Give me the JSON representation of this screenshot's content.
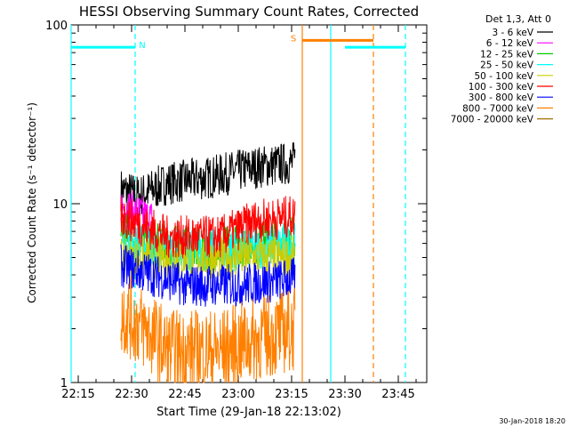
{
  "chart_data": {
    "type": "line",
    "title": "HESSI Observing Summary Count Rates, Corrected",
    "xlabel": "Start Time (29-Jan-18 22:13:02)",
    "ylabel": "Corrected Count Rate (s⁻¹ detector⁻¹)",
    "y_scale": "log",
    "ylim": [
      1,
      100
    ],
    "xlim": [
      "22:13",
      "23:53"
    ],
    "x_ticks": [
      "22:15",
      "22:30",
      "22:45",
      "23:00",
      "23:15",
      "23:30",
      "23:45"
    ],
    "y_ticks": [
      "1",
      "10",
      "100"
    ],
    "legend_title": "Det 1,3, Att 0",
    "legend_position": "right",
    "footer_date": "30-Jan-2018 18:20",
    "series": [
      {
        "name": "3 - 6 keV",
        "color": "#000000",
        "x": [
          "22:27",
          "22:32",
          "22:40",
          "22:52",
          "23:05",
          "23:16"
        ],
        "y": [
          12,
          11,
          13,
          14,
          16,
          17
        ]
      },
      {
        "name": "6 - 12 keV",
        "color": "#ff00ff",
        "x": [
          "22:27",
          "22:30",
          "22:36"
        ],
        "y": [
          10,
          9,
          8
        ]
      },
      {
        "name": "12 - 25 keV",
        "color": "#00cc00",
        "x": [
          "22:27",
          "22:35",
          "22:50",
          "23:05",
          "23:16"
        ],
        "y": [
          7,
          6,
          5.5,
          6,
          6.5
        ]
      },
      {
        "name": "25 - 50 keV",
        "color": "#00ffff",
        "x": [
          "22:27",
          "22:40",
          "23:00",
          "23:16"
        ],
        "y": [
          6,
          5.5,
          5.5,
          6
        ]
      },
      {
        "name": "50 - 100 keV",
        "color": "#cccc00",
        "x": [
          "22:27",
          "22:45",
          "23:16"
        ],
        "y": [
          5,
          5,
          5
        ]
      },
      {
        "name": "100 - 300 keV",
        "color": "#ff0000",
        "x": [
          "22:27",
          "22:40",
          "22:55",
          "23:05",
          "23:16"
        ],
        "y": [
          8.5,
          6.5,
          6.5,
          8,
          8.5
        ]
      },
      {
        "name": "300 - 800 keV",
        "color": "#0000ff",
        "x": [
          "22:27",
          "22:45",
          "23:00",
          "23:16"
        ],
        "y": [
          4.5,
          3.5,
          3.5,
          3.8
        ]
      },
      {
        "name": "800 - 7000 keV",
        "color": "#ff8000",
        "x": [
          "22:27",
          "22:40",
          "22:55",
          "23:16"
        ],
        "y": [
          2.5,
          1.5,
          1.5,
          2
        ]
      },
      {
        "name": "7000 - 20000 keV",
        "color": "#a07000",
        "x": [],
        "y": []
      }
    ],
    "annotations": {
      "flags": [
        {
          "label": "N",
          "color": "#00ffff",
          "start": "22:13",
          "end": "22:31",
          "level": 75
        },
        {
          "label": "S",
          "color": "#ff8000",
          "start": "23:18",
          "end": "23:38",
          "level": 82
        },
        {
          "label": "",
          "color": "#00ffff",
          "start": "23:30",
          "end": "23:47",
          "level": 75
        }
      ],
      "vertical_lines": [
        {
          "time": "22:13",
          "color": "#00ffff",
          "style": "solid"
        },
        {
          "time": "22:31",
          "color": "#00ffff",
          "style": "dashed"
        },
        {
          "time": "23:18",
          "color": "#ff8000",
          "style": "solid"
        },
        {
          "time": "23:26",
          "color": "#00ffff",
          "style": "solid"
        },
        {
          "time": "23:38",
          "color": "#ff8000",
          "style": "dashed"
        },
        {
          "time": "23:47",
          "color": "#00ffff",
          "style": "dashed"
        }
      ]
    }
  }
}
